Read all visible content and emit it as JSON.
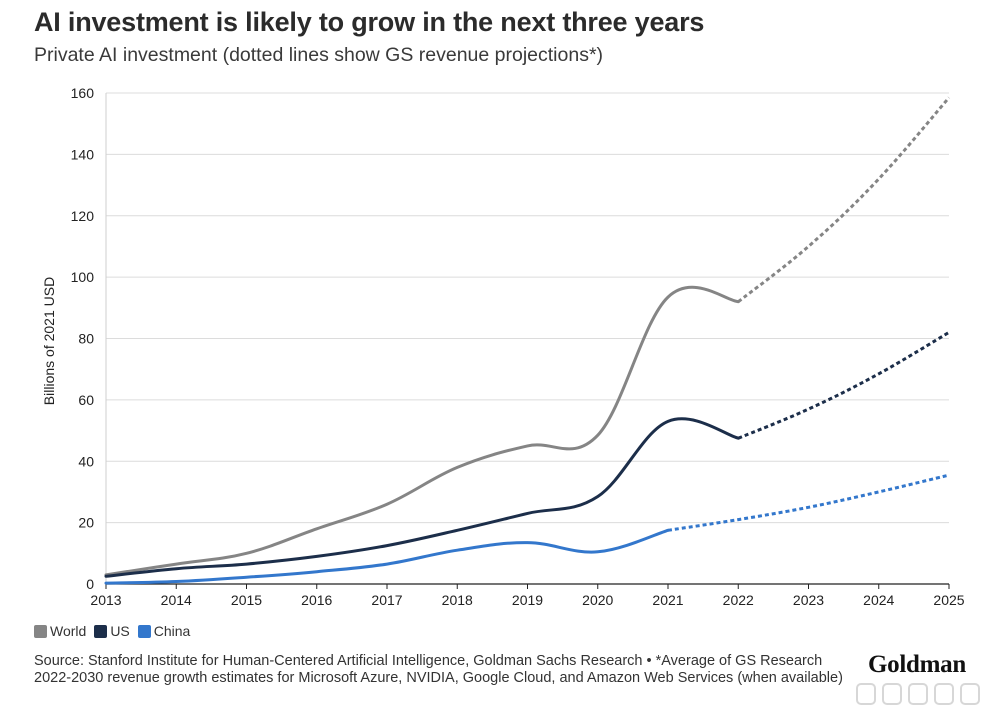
{
  "title": "AI investment is likely to grow in the next three years",
  "subtitle": "Private AI investment (dotted lines show GS revenue projections*)",
  "legend": [
    {
      "label": "World",
      "color": "#858585"
    },
    {
      "label": "US",
      "color": "#1c2e4a"
    },
    {
      "label": "China",
      "color": "#3377cc"
    }
  ],
  "source": "Source: Stanford Institute for Human-Centered Artificial Intelligence, Goldman Sachs Research • *Average of GS Research 2022-2030 revenue growth estimates for Microsoft Azure, NVIDIA, Google Cloud, and Amazon Web Services (when available)",
  "brand": "Goldman",
  "chart_data": {
    "type": "line",
    "title": "AI investment is likely to grow in the next three years",
    "subtitle": "Private AI investment (dotted lines show GS revenue projections*)",
    "xlabel": "",
    "ylabel": "Billions of 2021 USD",
    "x": [
      2013,
      2014,
      2015,
      2016,
      2017,
      2018,
      2019,
      2020,
      2021,
      2022,
      2023,
      2024,
      2025
    ],
    "xlim": [
      2013,
      2025
    ],
    "ylim": [
      0,
      160
    ],
    "yticks": [
      0,
      20,
      40,
      60,
      80,
      100,
      120,
      140,
      160
    ],
    "grid": "horizontal",
    "legend_position": "bottom-left",
    "series": [
      {
        "name": "World",
        "color": "#858585",
        "actual": [
          [
            2013,
            3
          ],
          [
            2014,
            6.5
          ],
          [
            2015,
            10
          ],
          [
            2016,
            18
          ],
          [
            2017,
            26
          ],
          [
            2018,
            38
          ],
          [
            2019,
            45
          ],
          [
            2020,
            48.5
          ],
          [
            2021,
            93.5
          ],
          [
            2022,
            92
          ]
        ],
        "projected": [
          [
            2022,
            92
          ],
          [
            2023,
            110
          ],
          [
            2024,
            132
          ],
          [
            2025,
            158.5
          ]
        ]
      },
      {
        "name": "US",
        "color": "#1c2e4a",
        "actual": [
          [
            2013,
            2.5
          ],
          [
            2014,
            5
          ],
          [
            2015,
            6.5
          ],
          [
            2016,
            9
          ],
          [
            2017,
            12.5
          ],
          [
            2018,
            17.5
          ],
          [
            2019,
            23
          ],
          [
            2020,
            28.5
          ],
          [
            2021,
            53
          ],
          [
            2022,
            47.5
          ]
        ],
        "projected": [
          [
            2022,
            47.5
          ],
          [
            2023,
            57
          ],
          [
            2024,
            68.5
          ],
          [
            2025,
            82
          ]
        ]
      },
      {
        "name": "China",
        "color": "#3377cc",
        "actual": [
          [
            2013,
            0.3
          ],
          [
            2014,
            0.8
          ],
          [
            2015,
            2.2
          ],
          [
            2016,
            4
          ],
          [
            2017,
            6.5
          ],
          [
            2018,
            11
          ],
          [
            2019,
            13.5
          ],
          [
            2020,
            10.5
          ],
          [
            2021,
            17.5
          ]
        ],
        "projected": [
          [
            2021,
            17.5
          ],
          [
            2022,
            21
          ],
          [
            2023,
            25
          ],
          [
            2024,
            30
          ],
          [
            2025,
            35.5
          ]
        ]
      }
    ]
  }
}
